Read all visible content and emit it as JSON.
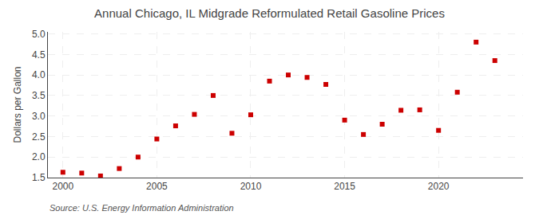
{
  "chart_data": {
    "type": "scatter",
    "title": "Annual Chicago, IL Midgrade Reformulated Retail Gasoline Prices",
    "y_label": "Dollars per Gallon",
    "annotations": [
      "Source: U.S. Energy Information Administration"
    ],
    "x": [
      2000,
      2001,
      2002,
      2003,
      2004,
      2005,
      2006,
      2007,
      2008,
      2009,
      2010,
      2011,
      2012,
      2013,
      2014,
      2015,
      2016,
      2017,
      2018,
      2019,
      2020,
      2021,
      2022,
      2023
    ],
    "values": [
      1.63,
      1.61,
      1.54,
      1.72,
      2.0,
      2.44,
      2.76,
      3.04,
      3.5,
      2.58,
      3.03,
      3.85,
      4.0,
      3.94,
      3.77,
      2.9,
      2.55,
      2.8,
      3.14,
      3.15,
      2.65,
      3.58,
      4.8,
      4.35
    ],
    "color": "#cc0000",
    "marker": "square",
    "xlim": [
      1999.2,
      2024.5
    ],
    "xticks": [
      2000,
      2005,
      2010,
      2015,
      2020
    ],
    "ylim": [
      1.5,
      5.05
    ],
    "yticks": [
      1.5,
      {
        "value": 2.0,
        "label": "2.0"
      },
      2.5,
      {
        "value": 3.0,
        "label": "3.0"
      },
      3.5,
      {
        "value": 4.0,
        "label": "4.0"
      },
      4.5,
      {
        "value": 5.0,
        "label": "5.0"
      }
    ],
    "grid": true
  }
}
